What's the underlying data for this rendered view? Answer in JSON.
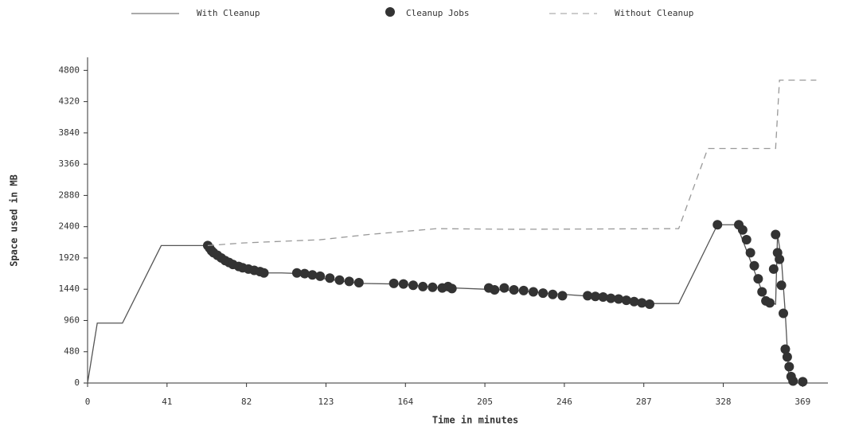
{
  "chart_data": {
    "type": "line",
    "xlabel": "Time in minutes",
    "ylabel": "Space used in MB",
    "xlim": [
      0,
      382
    ],
    "xticks": [
      0,
      41,
      82,
      123,
      164,
      205,
      246,
      287,
      328,
      369
    ],
    "ylim": [
      0,
      5000
    ],
    "yticks": [
      0,
      480,
      960,
      1440,
      1920,
      2400,
      2880,
      3360,
      3840,
      4320,
      4800
    ],
    "series": [
      {
        "name": "With Cleanup",
        "color": "#555555",
        "style": "solid",
        "x": [
          0,
          5,
          18,
          38,
          62,
          65,
          70,
          80,
          90,
          100,
          110,
          120,
          140,
          160,
          180,
          205,
          220,
          246,
          260,
          290,
          305,
          325,
          335,
          350,
          355,
          356,
          358,
          360,
          362,
          369
        ],
        "values": [
          0,
          920,
          920,
          2110,
          2110,
          2000,
          1880,
          1760,
          1690,
          1690,
          1680,
          1610,
          1530,
          1520,
          1470,
          1440,
          1420,
          1360,
          1330,
          1220,
          1220,
          2430,
          2430,
          1250,
          1210,
          2280,
          1900,
          1070,
          0,
          0
        ]
      },
      {
        "name": "Cleanup Jobs",
        "color": "#333333",
        "style": "markers",
        "x": [
          62,
          63,
          64,
          65,
          67,
          69,
          71,
          73,
          75,
          78,
          80,
          83,
          86,
          89,
          91,
          108,
          112,
          116,
          120,
          125,
          130,
          135,
          140,
          158,
          163,
          168,
          173,
          178,
          183,
          186,
          188,
          207,
          210,
          215,
          220,
          225,
          230,
          235,
          240,
          245,
          258,
          262,
          266,
          270,
          274,
          278,
          282,
          286,
          290,
          325,
          336,
          338,
          340,
          342,
          344,
          346,
          348,
          350,
          352,
          354,
          355,
          356,
          357,
          358,
          359,
          360,
          361,
          362,
          363,
          364,
          369
        ],
        "values": [
          2110,
          2070,
          2030,
          2000,
          1960,
          1920,
          1880,
          1850,
          1820,
          1790,
          1770,
          1750,
          1730,
          1710,
          1690,
          1690,
          1680,
          1660,
          1640,
          1610,
          1580,
          1560,
          1540,
          1530,
          1520,
          1500,
          1480,
          1470,
          1460,
          1480,
          1450,
          1460,
          1430,
          1460,
          1430,
          1420,
          1400,
          1380,
          1360,
          1340,
          1340,
          1330,
          1320,
          1300,
          1290,
          1270,
          1250,
          1230,
          1210,
          2430,
          2430,
          2350,
          2200,
          2000,
          1800,
          1600,
          1400,
          1260,
          1230,
          1750,
          2280,
          2000,
          1900,
          1500,
          1070,
          520,
          400,
          250,
          100,
          30,
          20
        ]
      },
      {
        "name": "Without Cleanup",
        "color": "#999999",
        "style": "dashed",
        "x": [
          62,
          80,
          120,
          145,
          180,
          220,
          305,
          320,
          355,
          357,
          376
        ],
        "values": [
          2110,
          2150,
          2200,
          2280,
          2370,
          2360,
          2370,
          3600,
          3600,
          4650,
          4650
        ]
      }
    ]
  }
}
